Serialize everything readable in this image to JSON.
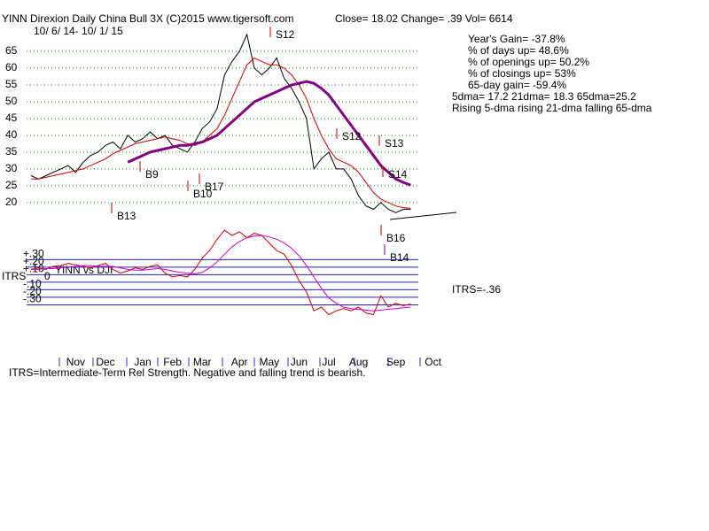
{
  "chart_data": [
    {
      "type": "line",
      "title": "YINN   Direxion Daily China Bull 3X  (C)2015 www.tigersoft.com",
      "subtitle": "Close=  18.02  Change= .39 Vol= 6614",
      "date_range": "10/ 6/ 14- 10/ 1/ 15",
      "stats": [
        "Year's Gain= -37.8%",
        "% of days up= 48.6%",
        "% of openings up= 50.2%",
        "% of closings up= 53%",
        "65-day gain= -59.4%",
        "5dma= 17.2 21dma= 18.3 65dma=25.2",
        "Rising 5-dma rising 21-dma falling 65-dma"
      ],
      "annotations": [
        "S12",
        "B9",
        "B17",
        "B10",
        "B13",
        "S12",
        "S13",
        "S14",
        "B16",
        "B14"
      ],
      "categories": [
        null,
        null,
        null,
        null,
        null,
        null,
        "Nov",
        null,
        null,
        null,
        "Dec",
        null,
        null,
        null,
        null,
        "Jan",
        null,
        null,
        null,
        "Feb",
        null,
        null,
        null,
        "Mar",
        null,
        null,
        null,
        null,
        "Apr",
        null,
        null,
        null,
        "May",
        null,
        null,
        null,
        "Jun",
        null,
        null,
        null,
        "Jul",
        null,
        null,
        null,
        "Aug",
        null,
        null,
        null,
        null,
        "Sep",
        null,
        null,
        null,
        null,
        "Oct"
      ],
      "series": [
        {
          "color": "#000000",
          "values": [
            28,
            27,
            28,
            29,
            30,
            31,
            29,
            32,
            34,
            35,
            37,
            38,
            36,
            40,
            38,
            39,
            41,
            39,
            40,
            37,
            36,
            35,
            38,
            42,
            44,
            48,
            58,
            62,
            65,
            70,
            60,
            58,
            60,
            63,
            57,
            54,
            50,
            45,
            30,
            33,
            35,
            30,
            30,
            27,
            22,
            19,
            18,
            20,
            18,
            17,
            18,
            18.02,
            null,
            null,
            null
          ]
        },
        {
          "color": "#cc0000",
          "values": [
            27,
            27,
            27.5,
            28,
            28.5,
            29,
            29.5,
            30,
            31,
            32,
            33,
            34.5,
            35.5,
            36.5,
            37.5,
            38,
            38.5,
            39,
            39.5,
            39,
            38.5,
            37.5,
            37,
            38,
            40,
            42,
            46,
            51,
            56,
            61,
            63,
            62,
            61,
            61,
            60,
            58,
            55,
            51,
            45,
            40,
            36,
            33,
            32,
            31,
            29,
            26,
            23,
            21,
            20,
            19,
            18.5,
            18.3,
            null,
            null,
            null
          ]
        },
        {
          "color": "#800080",
          "values": [
            null,
            null,
            null,
            null,
            null,
            null,
            null,
            null,
            null,
            null,
            null,
            null,
            null,
            32,
            33,
            34,
            35,
            35.5,
            36,
            36.5,
            37,
            37,
            37.5,
            38,
            39,
            40,
            42,
            44,
            46,
            48,
            50,
            51,
            52,
            53,
            54,
            55,
            55.5,
            56,
            55.5,
            54,
            52,
            49,
            46,
            43,
            40,
            37,
            34,
            31,
            29,
            27,
            26,
            25.2,
            null,
            null,
            null
          ]
        }
      ],
      "ylim": [
        15.5,
        75
      ],
      "yticks": [
        20,
        25,
        30,
        35,
        40,
        45,
        50,
        55,
        60,
        65
      ],
      "grid": true
    },
    {
      "type": "line",
      "ylabel": "ITRS",
      "annotation": "YINN vs DJI",
      "current": "ITRS=-.36",
      "footnote": "ITRS=Intermediate-Term Rel Strength. Negative and falling trend is bearish.",
      "series": [
        {
          "color": "#cc0000",
          "values": [
            0.1,
            0.12,
            0.1,
            0.14,
            0.15,
            0.18,
            0.16,
            0.14,
            0.12,
            0.15,
            0.18,
            0.1,
            0.05,
            0.08,
            0.12,
            0.1,
            0.14,
            0.16,
            0.05,
            0,
            0.02,
            0,
            0.1,
            0.25,
            0.35,
            0.5,
            0.62,
            0.55,
            0.6,
            0.52,
            0.58,
            0.55,
            0.45,
            0.35,
            0.3,
            0.15,
            -0.05,
            -0.2,
            -0.45,
            -0.4,
            -0.5,
            -0.45,
            -0.42,
            -0.45,
            -0.4,
            -0.48,
            -0.5,
            -0.25,
            -0.4,
            -0.35,
            -0.38,
            -0.36,
            null,
            null,
            null
          ]
        },
        {
          "color": "#cc00cc",
          "values": [
            0.1,
            0.1,
            0.11,
            0.11,
            0.12,
            0.13,
            0.14,
            0.15,
            0.15,
            0.14,
            0.14,
            0.14,
            0.12,
            0.1,
            0.09,
            0.09,
            0.1,
            0.11,
            0.1,
            0.08,
            0.06,
            0.05,
            0.04,
            0.06,
            0.12,
            0.2,
            0.3,
            0.4,
            0.47,
            0.52,
            0.54,
            0.55,
            0.53,
            0.5,
            0.45,
            0.38,
            0.28,
            0.15,
            0,
            -0.15,
            -0.28,
            -0.35,
            -0.4,
            -0.42,
            -0.43,
            -0.44,
            -0.45,
            -0.44,
            -0.43,
            -0.42,
            -0.41,
            -0.4,
            null,
            null,
            null
          ]
        }
      ],
      "ylim": [
        -0.6,
        0.75
      ],
      "yticks": [
        {
          "value": 0.3,
          "label": "+.30"
        },
        {
          "value": 0.2,
          "label": "+.20"
        },
        {
          "value": 0.1,
          "label": "+.10"
        },
        {
          "value": 0,
          "label": "0"
        },
        {
          "value": -0.1,
          "label": "-.10"
        },
        {
          "value": -0.2,
          "label": "-.20"
        },
        {
          "value": -0.3,
          "label": "-.30"
        }
      ]
    }
  ]
}
